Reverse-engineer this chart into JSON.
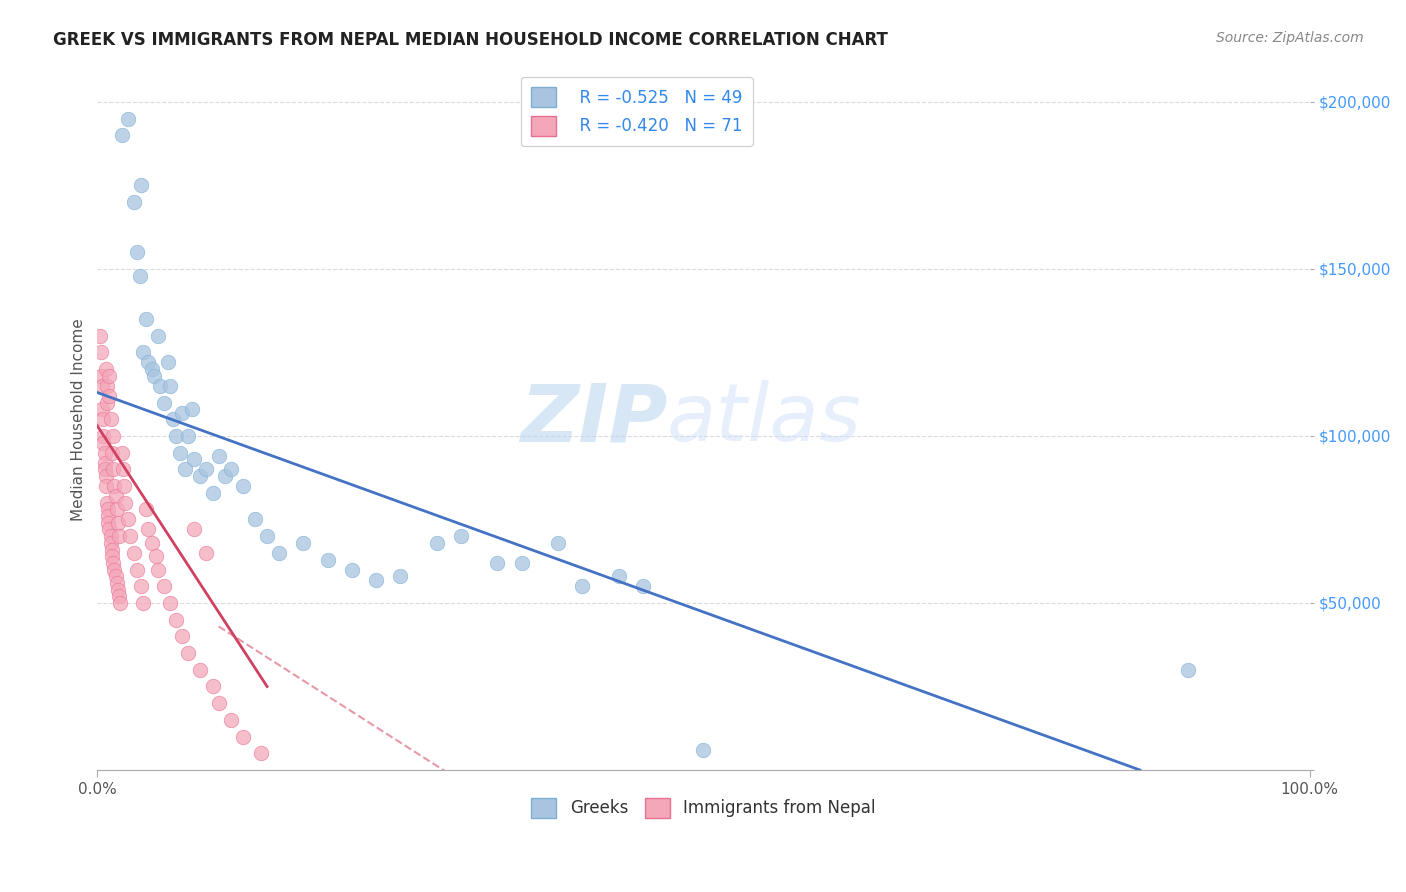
{
  "title": "GREEK VS IMMIGRANTS FROM NEPAL MEDIAN HOUSEHOLD INCOME CORRELATION CHART",
  "source": "Source: ZipAtlas.com",
  "ylabel": "Median Household Income",
  "xlim": [
    0,
    1.0
  ],
  "ylim": [
    0,
    210000
  ],
  "xticks": [
    0.0,
    1.0
  ],
  "xticklabels": [
    "0.0%",
    "100.0%"
  ],
  "yticks": [
    0,
    50000,
    100000,
    150000,
    200000
  ],
  "yticklabels": [
    "",
    "$50,000",
    "$100,000",
    "$150,000",
    "$200,000"
  ],
  "background_color": "#ffffff",
  "grid_color": "#cccccc",
  "series1_color": "#a8c4e0",
  "series1_edge": "#7bafd4",
  "series2_color": "#f4a7b9",
  "series2_edge": "#e87090",
  "line1_color": "#4472c4",
  "line2_color": "#d04060",
  "line_dashed_color": "#e08090",
  "legend_r1": "R = -0.525",
  "legend_n1": "N = 49",
  "legend_r2": "R = -0.420",
  "legend_n2": "N = 71",
  "legend_label1": "Greeks",
  "legend_label2": "Immigrants from Nepal",
  "watermark_zip": "ZIP",
  "watermark_atlas": "atlas",
  "greeks_x": [
    0.02,
    0.025,
    0.03,
    0.033,
    0.035,
    0.036,
    0.038,
    0.04,
    0.042,
    0.045,
    0.047,
    0.05,
    0.052,
    0.055,
    0.058,
    0.06,
    0.062,
    0.065,
    0.068,
    0.07,
    0.072,
    0.075,
    0.078,
    0.08,
    0.085,
    0.09,
    0.095,
    0.1,
    0.105,
    0.11,
    0.12,
    0.13,
    0.14,
    0.15,
    0.17,
    0.19,
    0.21,
    0.23,
    0.25,
    0.28,
    0.3,
    0.33,
    0.35,
    0.38,
    0.4,
    0.45,
    0.5,
    0.9,
    0.43
  ],
  "greeks_y": [
    190000,
    195000,
    170000,
    155000,
    148000,
    175000,
    125000,
    135000,
    122000,
    120000,
    118000,
    130000,
    115000,
    110000,
    122000,
    115000,
    105000,
    100000,
    95000,
    107000,
    90000,
    100000,
    108000,
    93000,
    88000,
    90000,
    83000,
    94000,
    88000,
    90000,
    85000,
    75000,
    70000,
    65000,
    68000,
    63000,
    60000,
    57000,
    58000,
    68000,
    70000,
    62000,
    62000,
    68000,
    55000,
    55000,
    6000,
    30000,
    58000
  ],
  "nepal_x": [
    0.002,
    0.003,
    0.003,
    0.004,
    0.004,
    0.005,
    0.005,
    0.005,
    0.006,
    0.006,
    0.006,
    0.007,
    0.007,
    0.007,
    0.008,
    0.008,
    0.008,
    0.009,
    0.009,
    0.009,
    0.01,
    0.01,
    0.01,
    0.011,
    0.011,
    0.011,
    0.012,
    0.012,
    0.012,
    0.013,
    0.013,
    0.013,
    0.014,
    0.014,
    0.015,
    0.015,
    0.016,
    0.016,
    0.017,
    0.017,
    0.018,
    0.018,
    0.019,
    0.02,
    0.021,
    0.022,
    0.023,
    0.025,
    0.027,
    0.03,
    0.033,
    0.036,
    0.038,
    0.04,
    0.042,
    0.045,
    0.048,
    0.05,
    0.055,
    0.06,
    0.065,
    0.07,
    0.075,
    0.08,
    0.085,
    0.09,
    0.095,
    0.1,
    0.11,
    0.12,
    0.135
  ],
  "nepal_y": [
    130000,
    125000,
    118000,
    115000,
    108000,
    105000,
    100000,
    98000,
    95000,
    92000,
    90000,
    88000,
    85000,
    120000,
    115000,
    110000,
    80000,
    78000,
    76000,
    74000,
    118000,
    112000,
    72000,
    70000,
    68000,
    105000,
    95000,
    66000,
    64000,
    100000,
    62000,
    90000,
    60000,
    85000,
    58000,
    82000,
    56000,
    78000,
    54000,
    74000,
    52000,
    70000,
    50000,
    95000,
    90000,
    85000,
    80000,
    75000,
    70000,
    65000,
    60000,
    55000,
    50000,
    78000,
    72000,
    68000,
    64000,
    60000,
    55000,
    50000,
    45000,
    40000,
    35000,
    72000,
    30000,
    65000,
    25000,
    20000,
    15000,
    10000,
    5000
  ]
}
